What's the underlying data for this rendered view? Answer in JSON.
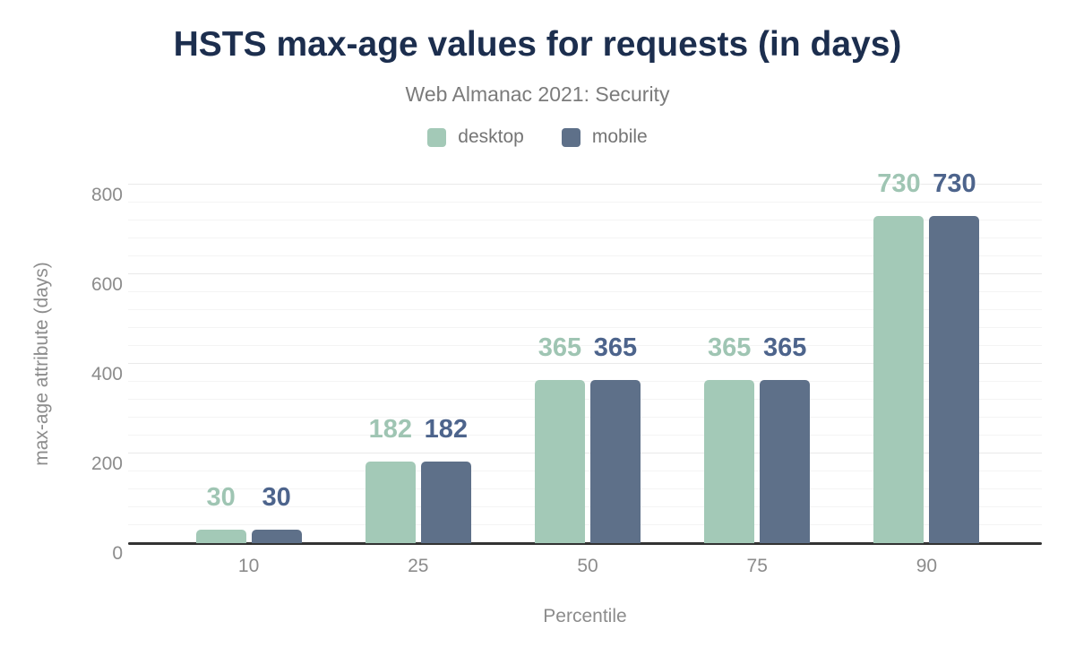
{
  "chart_data": {
    "type": "bar",
    "title": "HSTS max-age values for requests (in days)",
    "subtitle": "Web Almanac 2021: Security",
    "xlabel": "Percentile",
    "ylabel": "max-age attribute (days)",
    "categories": [
      "10",
      "25",
      "50",
      "75",
      "90"
    ],
    "series": [
      {
        "name": "desktop",
        "values": [
          30,
          182,
          365,
          365,
          730
        ],
        "color": "#a3c9b7",
        "label_color": "#9fc5b3"
      },
      {
        "name": "mobile",
        "values": [
          30,
          182,
          365,
          365,
          730
        ],
        "color": "#5e7089",
        "label_color": "#4d648c"
      }
    ],
    "ylim": [
      0,
      800
    ],
    "yticks": [
      0,
      200,
      400,
      600,
      800
    ],
    "minor_gridline_step": 40,
    "major_gridline_step": 200,
    "grid": true,
    "legend_position": "top"
  },
  "colors": {
    "title": "#1c2e4e",
    "subtitle": "#7b7b7b",
    "axis_text": "#8c8c8c",
    "axis_line": "#333333",
    "grid_major": "#e9e9e9",
    "grid_minor": "#f4f4f4",
    "background": "#ffffff"
  }
}
